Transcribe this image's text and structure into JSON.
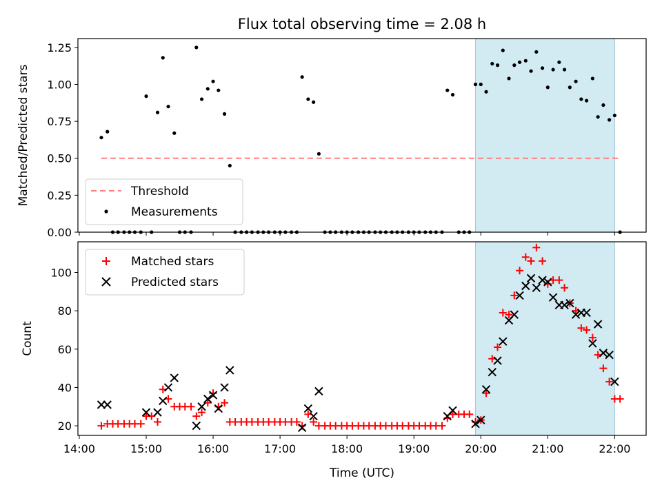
{
  "chart_data": [
    {
      "type": "scatter",
      "title": "Flux total observing time = 2.08 h",
      "ylabel": "Matched/Predicted stars",
      "ylim": [
        0,
        1.31
      ],
      "yticks": [
        "0.00",
        "0.25",
        "0.50",
        "0.75",
        "1.00",
        "1.25"
      ],
      "xlim_hours": [
        13.98,
        22.47
      ],
      "shaded_span_hours": [
        19.92,
        22.0
      ],
      "threshold": {
        "label": "Threshold",
        "value": 0.5,
        "x_start_hours": 14.33,
        "x_end_hours": 22.08,
        "color": "#ff7f7f"
      },
      "measurements": {
        "label": "Measurements",
        "color": "#000000",
        "points": [
          [
            14.33,
            0.64
          ],
          [
            14.42,
            0.68
          ],
          [
            14.5,
            0
          ],
          [
            14.58,
            0
          ],
          [
            14.67,
            0
          ],
          [
            14.75,
            0
          ],
          [
            14.83,
            0
          ],
          [
            14.92,
            0
          ],
          [
            15.0,
            0.92
          ],
          [
            15.08,
            0
          ],
          [
            15.17,
            0.81
          ],
          [
            15.25,
            1.18
          ],
          [
            15.33,
            0.85
          ],
          [
            15.42,
            0.67
          ],
          [
            15.5,
            0
          ],
          [
            15.58,
            0
          ],
          [
            15.67,
            0
          ],
          [
            15.75,
            1.25
          ],
          [
            15.83,
            0.9
          ],
          [
            15.92,
            0.97
          ],
          [
            16.0,
            1.02
          ],
          [
            16.08,
            0.96
          ],
          [
            16.17,
            0.8
          ],
          [
            16.25,
            0.45
          ],
          [
            16.33,
            0
          ],
          [
            16.42,
            0
          ],
          [
            16.5,
            0
          ],
          [
            16.58,
            0
          ],
          [
            16.67,
            0
          ],
          [
            16.75,
            0
          ],
          [
            16.83,
            0
          ],
          [
            16.92,
            0
          ],
          [
            17.0,
            0
          ],
          [
            17.08,
            0
          ],
          [
            17.17,
            0
          ],
          [
            17.25,
            0
          ],
          [
            17.33,
            1.05
          ],
          [
            17.42,
            0.9
          ],
          [
            17.5,
            0.88
          ],
          [
            17.58,
            0.53
          ],
          [
            17.67,
            0
          ],
          [
            17.75,
            0
          ],
          [
            17.83,
            0
          ],
          [
            17.92,
            0
          ],
          [
            18.0,
            0
          ],
          [
            18.08,
            0
          ],
          [
            18.17,
            0
          ],
          [
            18.25,
            0
          ],
          [
            18.33,
            0
          ],
          [
            18.42,
            0
          ],
          [
            18.5,
            0
          ],
          [
            18.58,
            0
          ],
          [
            18.67,
            0
          ],
          [
            18.75,
            0
          ],
          [
            18.83,
            0
          ],
          [
            18.92,
            0
          ],
          [
            19.0,
            0
          ],
          [
            19.08,
            0
          ],
          [
            19.17,
            0
          ],
          [
            19.25,
            0
          ],
          [
            19.33,
            0
          ],
          [
            19.42,
            0
          ],
          [
            19.5,
            0.96
          ],
          [
            19.58,
            0.93
          ],
          [
            19.67,
            0
          ],
          [
            19.75,
            0
          ],
          [
            19.83,
            0
          ],
          [
            19.92,
            1.0
          ],
          [
            20.0,
            1.0
          ],
          [
            20.08,
            0.95
          ],
          [
            20.17,
            1.14
          ],
          [
            20.25,
            1.13
          ],
          [
            20.33,
            1.23
          ],
          [
            20.42,
            1.04
          ],
          [
            20.5,
            1.13
          ],
          [
            20.58,
            1.15
          ],
          [
            20.67,
            1.16
          ],
          [
            20.75,
            1.09
          ],
          [
            20.83,
            1.22
          ],
          [
            20.92,
            1.11
          ],
          [
            21.0,
            0.98
          ],
          [
            21.08,
            1.1
          ],
          [
            21.17,
            1.15
          ],
          [
            21.25,
            1.1
          ],
          [
            21.33,
            0.98
          ],
          [
            21.42,
            1.02
          ],
          [
            21.5,
            0.9
          ],
          [
            21.58,
            0.89
          ],
          [
            21.67,
            1.04
          ],
          [
            21.75,
            0.78
          ],
          [
            21.83,
            0.86
          ],
          [
            21.92,
            0.76
          ],
          [
            22.0,
            0.79
          ],
          [
            22.08,
            0
          ]
        ]
      },
      "legend": {
        "position": "lower left",
        "entries": [
          "Threshold",
          "Measurements"
        ]
      }
    },
    {
      "type": "scatter",
      "xlabel": "Time (UTC)",
      "ylabel": "Count",
      "ylim": [
        15,
        116
      ],
      "yticks": [
        "20",
        "40",
        "60",
        "80",
        "100"
      ],
      "xticks": [
        "14:00",
        "15:00",
        "16:00",
        "17:00",
        "18:00",
        "19:00",
        "20:00",
        "21:00",
        "22:00"
      ],
      "xlim_hours": [
        13.98,
        22.47
      ],
      "shaded_span_hours": [
        19.92,
        22.0
      ],
      "series": [
        {
          "name": "Matched stars",
          "marker": "plus",
          "color": "#ff0000",
          "points": [
            [
              14.33,
              20
            ],
            [
              14.42,
              21
            ],
            [
              14.5,
              21
            ],
            [
              14.58,
              21
            ],
            [
              14.67,
              21
            ],
            [
              14.75,
              21
            ],
            [
              14.83,
              21
            ],
            [
              14.92,
              21
            ],
            [
              15.0,
              25
            ],
            [
              15.08,
              25
            ],
            [
              15.17,
              22
            ],
            [
              15.25,
              39
            ],
            [
              15.33,
              34
            ],
            [
              15.42,
              30
            ],
            [
              15.5,
              30
            ],
            [
              15.58,
              30
            ],
            [
              15.67,
              30
            ],
            [
              15.75,
              25
            ],
            [
              15.83,
              27
            ],
            [
              15.92,
              32
            ],
            [
              16.0,
              37
            ],
            [
              16.08,
              30
            ],
            [
              16.17,
              32
            ],
            [
              16.25,
              22
            ],
            [
              16.33,
              22
            ],
            [
              16.42,
              22
            ],
            [
              16.5,
              22
            ],
            [
              16.58,
              22
            ],
            [
              16.67,
              22
            ],
            [
              16.75,
              22
            ],
            [
              16.83,
              22
            ],
            [
              16.92,
              22
            ],
            [
              17.0,
              22
            ],
            [
              17.08,
              22
            ],
            [
              17.17,
              22
            ],
            [
              17.25,
              22
            ],
            [
              17.33,
              20
            ],
            [
              17.42,
              26
            ],
            [
              17.5,
              22
            ],
            [
              17.58,
              20
            ],
            [
              17.67,
              20
            ],
            [
              17.75,
              20
            ],
            [
              17.83,
              20
            ],
            [
              17.92,
              20
            ],
            [
              18.0,
              20
            ],
            [
              18.08,
              20
            ],
            [
              18.17,
              20
            ],
            [
              18.25,
              20
            ],
            [
              18.33,
              20
            ],
            [
              18.42,
              20
            ],
            [
              18.5,
              20
            ],
            [
              18.58,
              20
            ],
            [
              18.67,
              20
            ],
            [
              18.75,
              20
            ],
            [
              18.83,
              20
            ],
            [
              18.92,
              20
            ],
            [
              19.0,
              20
            ],
            [
              19.08,
              20
            ],
            [
              19.17,
              20
            ],
            [
              19.25,
              20
            ],
            [
              19.33,
              20
            ],
            [
              19.42,
              20
            ],
            [
              19.5,
              24
            ],
            [
              19.58,
              26
            ],
            [
              19.67,
              26
            ],
            [
              19.75,
              26
            ],
            [
              19.83,
              26
            ],
            [
              19.92,
              22
            ],
            [
              20.0,
              23
            ],
            [
              20.08,
              37
            ],
            [
              20.17,
              55
            ],
            [
              20.25,
              61
            ],
            [
              20.33,
              79
            ],
            [
              20.42,
              78
            ],
            [
              20.5,
              88
            ],
            [
              20.58,
              101
            ],
            [
              20.67,
              108
            ],
            [
              20.75,
              106
            ],
            [
              20.83,
              113
            ],
            [
              20.92,
              106
            ],
            [
              21.0,
              94
            ],
            [
              21.08,
              96
            ],
            [
              21.17,
              96
            ],
            [
              21.25,
              92
            ],
            [
              21.33,
              84
            ],
            [
              21.42,
              80
            ],
            [
              21.5,
              71
            ],
            [
              21.58,
              70
            ],
            [
              21.67,
              66
            ],
            [
              21.75,
              57
            ],
            [
              21.83,
              50
            ],
            [
              21.92,
              43
            ],
            [
              22.0,
              34
            ],
            [
              22.08,
              34
            ]
          ]
        },
        {
          "name": "Predicted stars",
          "marker": "x",
          "color": "#000000",
          "points": [
            [
              14.33,
              31
            ],
            [
              14.42,
              31
            ],
            [
              15.0,
              27
            ],
            [
              15.17,
              27
            ],
            [
              15.25,
              33
            ],
            [
              15.33,
              40
            ],
            [
              15.42,
              45
            ],
            [
              15.75,
              20
            ],
            [
              15.83,
              30
            ],
            [
              15.92,
              34
            ],
            [
              16.0,
              36
            ],
            [
              16.08,
              29
            ],
            [
              16.17,
              40
            ],
            [
              16.25,
              49
            ],
            [
              17.33,
              19
            ],
            [
              17.42,
              29
            ],
            [
              17.5,
              25
            ],
            [
              17.58,
              38
            ],
            [
              19.5,
              25
            ],
            [
              19.58,
              28
            ],
            [
              19.92,
              21
            ],
            [
              20.0,
              23
            ],
            [
              20.08,
              39
            ],
            [
              20.17,
              48
            ],
            [
              20.25,
              54
            ],
            [
              20.33,
              64
            ],
            [
              20.42,
              75
            ],
            [
              20.5,
              78
            ],
            [
              20.58,
              88
            ],
            [
              20.67,
              93
            ],
            [
              20.75,
              97
            ],
            [
              20.83,
              92
            ],
            [
              20.92,
              96
            ],
            [
              21.0,
              95
            ],
            [
              21.08,
              87
            ],
            [
              21.17,
              83
            ],
            [
              21.25,
              83
            ],
            [
              21.33,
              84
            ],
            [
              21.42,
              78
            ],
            [
              21.5,
              79
            ],
            [
              21.58,
              79
            ],
            [
              21.75,
              73
            ],
            [
              21.67,
              63
            ],
            [
              21.83,
              58
            ],
            [
              21.92,
              57
            ],
            [
              22.0,
              43
            ]
          ]
        }
      ],
      "legend": {
        "position": "upper left",
        "entries": [
          "Matched stars",
          "Predicted stars"
        ]
      }
    }
  ]
}
